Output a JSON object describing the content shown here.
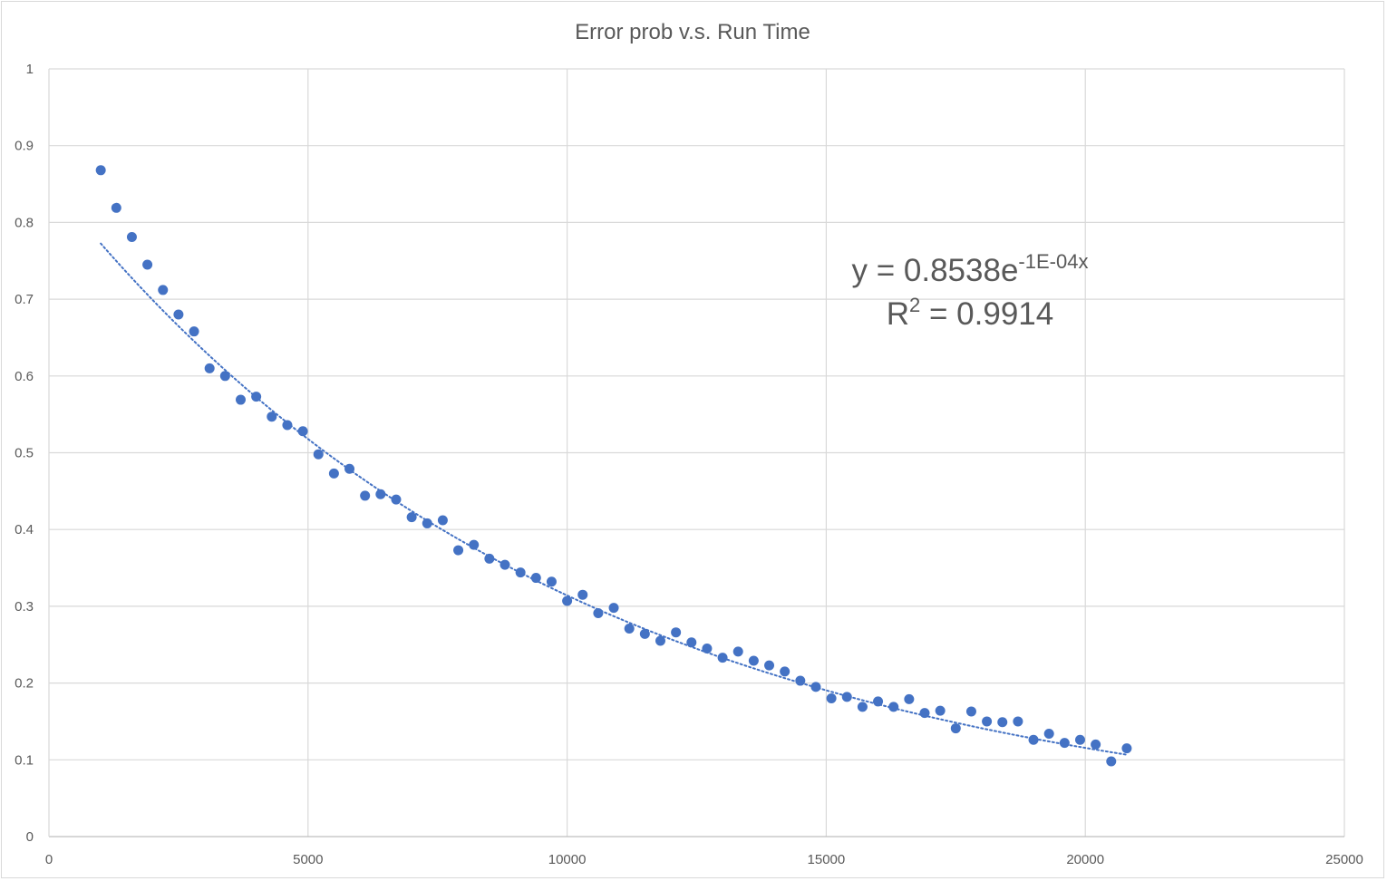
{
  "chart_data": {
    "type": "scatter",
    "title": "Error prob v.s. Run Time",
    "xlabel": "",
    "ylabel": "",
    "xlim": [
      0,
      25000
    ],
    "ylim": [
      0,
      1
    ],
    "x_ticks": [
      "0",
      "5000",
      "10000",
      "15000",
      "20000",
      "25000"
    ],
    "y_ticks": [
      "0",
      "0.1",
      "0.2",
      "0.3",
      "0.4",
      "0.5",
      "0.6",
      "0.7",
      "0.8",
      "0.9",
      "1"
    ],
    "grid": true,
    "legend": "none",
    "series": [
      {
        "marker_color": "#4472c4",
        "x": [
          1000,
          1300,
          1600,
          1900,
          2200,
          2500,
          2800,
          3100,
          3400,
          3700,
          4000,
          4300,
          4600,
          4900,
          5200,
          5500,
          5800,
          6100,
          6400,
          6700,
          7000,
          7300,
          7600,
          7900,
          8200,
          8500,
          8800,
          9100,
          9400,
          9700,
          10000,
          10300,
          10600,
          10900,
          11200,
          11500,
          11800,
          12100,
          12400,
          12700,
          13000,
          13300,
          13600,
          13900,
          14200,
          14500,
          14800,
          15100,
          15400,
          15700,
          16000,
          16300,
          16600,
          16900,
          17200,
          17500,
          17800,
          18100,
          18400,
          18700,
          19000,
          19300,
          19600,
          19900,
          20200,
          20500,
          20800
        ],
        "y": [
          0.868,
          0.819,
          0.781,
          0.745,
          0.712,
          0.68,
          0.658,
          0.61,
          0.6,
          0.569,
          0.573,
          0.547,
          0.536,
          0.528,
          0.498,
          0.473,
          0.479,
          0.444,
          0.446,
          0.439,
          0.416,
          0.408,
          0.412,
          0.373,
          0.38,
          0.362,
          0.354,
          0.344,
          0.337,
          0.332,
          0.307,
          0.315,
          0.291,
          0.298,
          0.271,
          0.264,
          0.255,
          0.266,
          0.253,
          0.245,
          0.233,
          0.241,
          0.229,
          0.223,
          0.215,
          0.203,
          0.195,
          0.18,
          0.182,
          0.169,
          0.176,
          0.169,
          0.179,
          0.161,
          0.164,
          0.141,
          0.163,
          0.15,
          0.149,
          0.15,
          0.126,
          0.134,
          0.122,
          0.126,
          0.12,
          0.098,
          0.115
        ]
      }
    ],
    "trendline": {
      "type": "exponential",
      "a": 0.8538,
      "b": -0.0001,
      "x_range": [
        1000,
        20800
      ],
      "color": "#4472c4",
      "style": "dotted",
      "equation_main": "y = 0.8538e",
      "equation_exponent": "-1E-04x",
      "r2_main": "R",
      "r2_sup": "2",
      "r2_value": " = 0.9914"
    }
  }
}
